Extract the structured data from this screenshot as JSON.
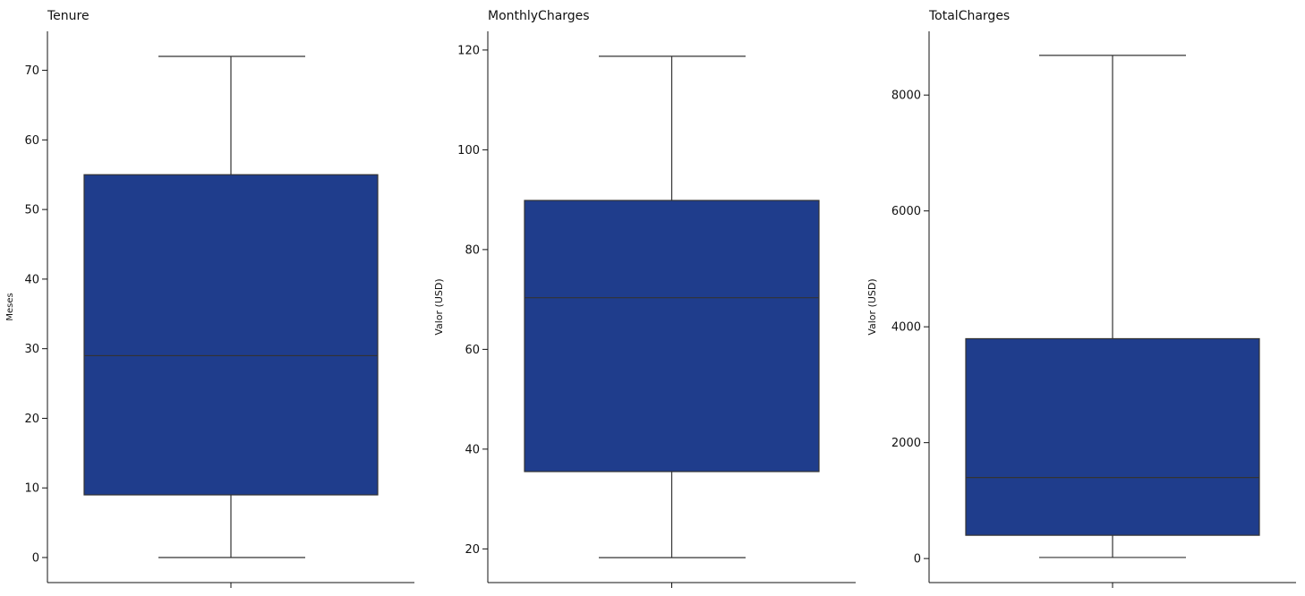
{
  "colors": {
    "box_fill": "#1f3d8c",
    "line": "#333333",
    "axis": "#111111",
    "background": "#ffffff"
  },
  "chart_data": [
    {
      "type": "box",
      "title": "Tenure",
      "ylabel": "Meses",
      "ylim": [
        -3.6,
        75.6
      ],
      "yticks": [
        0,
        10,
        20,
        30,
        40,
        50,
        60,
        70
      ],
      "ytick_labels": [
        "0",
        "10",
        "20",
        "30",
        "40",
        "50",
        "60",
        "70"
      ],
      "box": {
        "whisker_low": 0,
        "q1": 9,
        "median": 29,
        "q3": 55,
        "whisker_high": 72
      }
    },
    {
      "type": "box",
      "title": "MonthlyCharges",
      "ylabel": "Valor (USD)",
      "ylim": [
        13.25,
        123.75
      ],
      "yticks": [
        20,
        40,
        60,
        80,
        100,
        120
      ],
      "ytick_labels": [
        "20",
        "40",
        "60",
        "80",
        "100",
        "120"
      ],
      "box": {
        "whisker_low": 18.25,
        "q1": 35.5,
        "median": 70.35,
        "q3": 89.85,
        "whisker_high": 118.75
      }
    },
    {
      "type": "box",
      "title": "TotalCharges",
      "ylabel": "Valor (USD)",
      "ylim": [
        -415,
        9100
      ],
      "yticks": [
        0,
        2000,
        4000,
        6000,
        8000
      ],
      "ytick_labels": [
        "0",
        "2000",
        "4000",
        "6000",
        "8000"
      ],
      "box": {
        "whisker_low": 18.8,
        "q1": 401.45,
        "median": 1397.47,
        "q3": 3794.74,
        "whisker_high": 8684.8
      }
    }
  ]
}
